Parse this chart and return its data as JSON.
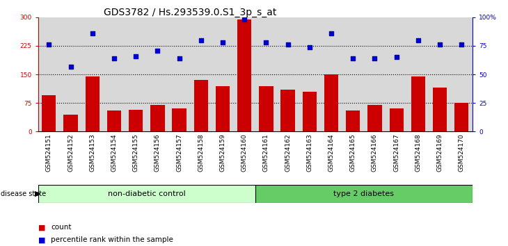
{
  "title": "GDS3782 / Hs.293539.0.S1_3p_s_at",
  "samples": [
    "GSM524151",
    "GSM524152",
    "GSM524153",
    "GSM524154",
    "GSM524155",
    "GSM524156",
    "GSM524157",
    "GSM524158",
    "GSM524159",
    "GSM524160",
    "GSM524161",
    "GSM524162",
    "GSM524163",
    "GSM524164",
    "GSM524165",
    "GSM524166",
    "GSM524167",
    "GSM524168",
    "GSM524169",
    "GSM524170"
  ],
  "counts": [
    95,
    45,
    145,
    55,
    58,
    70,
    60,
    135,
    120,
    295,
    120,
    110,
    105,
    150,
    55,
    70,
    60,
    145,
    115,
    75
  ],
  "percentiles": [
    76,
    57,
    86,
    64,
    66,
    71,
    64,
    80,
    78,
    98,
    78,
    76,
    74,
    86,
    64,
    64,
    65,
    80,
    76,
    76
  ],
  "group1_label": "non-diabetic control",
  "group2_label": "type 2 diabetes",
  "group1_count": 10,
  "group2_count": 10,
  "bar_color": "#cc0000",
  "dot_color": "#0000cc",
  "left_axis_color": "#cc0000",
  "right_axis_color": "#0000cc",
  "ylim_left": [
    0,
    300
  ],
  "ylim_right": [
    0,
    100
  ],
  "yticks_left": [
    0,
    75,
    150,
    225,
    300
  ],
  "yticks_right": [
    0,
    25,
    50,
    75,
    100
  ],
  "ytick_labels_right": [
    "0",
    "25",
    "50",
    "75",
    "100%"
  ],
  "hlines": [
    75,
    150,
    225
  ],
  "group1_color": "#ccffcc",
  "group2_color": "#66cc66",
  "disease_state_label": "disease state",
  "legend_count_label": "count",
  "legend_pct_label": "percentile rank within the sample",
  "title_fontsize": 10,
  "tick_fontsize": 6.5,
  "label_fontsize": 8,
  "bg_color": "#d8d8d8"
}
